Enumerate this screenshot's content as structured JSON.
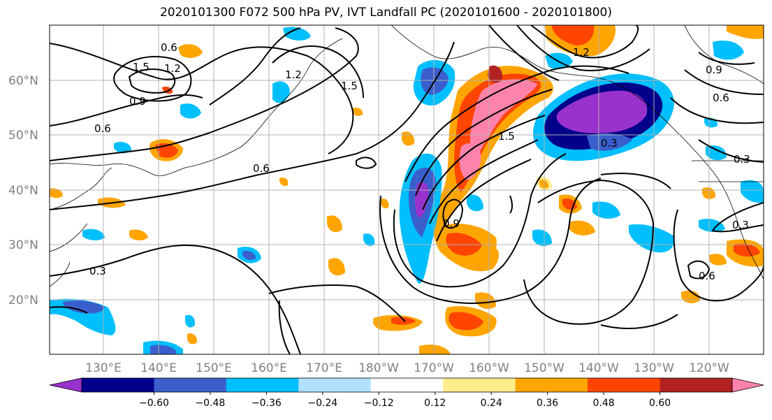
{
  "title": "2020101300 F072 500 hPa PV, IVT Landfall PC (2020101600 - 2020101800)",
  "map": {
    "lat_labels": [
      "20°N",
      "30°N",
      "40°N",
      "50°N",
      "60°N"
    ],
    "lon_labels": [
      "130°E",
      "140°E",
      "150°E",
      "160°E",
      "170°E",
      "180°W",
      "170°W",
      "160°W",
      "150°W",
      "140°W",
      "130°W",
      "120°W"
    ],
    "contour_labels": [
      "1.5",
      "1.2",
      "0.6",
      "0.9",
      "0.6",
      "1.5",
      "0.3",
      "1.2",
      "1.5",
      "0.9",
      "0.6",
      "0.3",
      "0.3",
      "0.3",
      "0.6",
      "0.9",
      "0.6",
      "1.2"
    ]
  },
  "colorbar": {
    "ticks": [
      "−0.60",
      "−0.48",
      "−0.36",
      "−0.24",
      "−0.12",
      "0.12",
      "0.24",
      "0.36",
      "0.48",
      "0.60"
    ],
    "colors": [
      "#9932cc",
      "#00008b",
      "#3a5fcd",
      "#00bfff",
      "#b0e2ff",
      "#ffffff",
      "#ffec8b",
      "#ffa500",
      "#ff4500",
      "#b22222",
      "#ff82ab"
    ]
  }
}
